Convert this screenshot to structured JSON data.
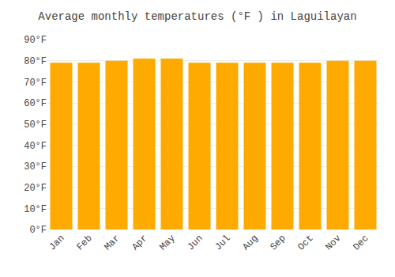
{
  "chart_data": {
    "type": "bar",
    "title": "Average monthly temperatures (°F ) in Laguilayan",
    "categories": [
      "Jan",
      "Feb",
      "Mar",
      "Apr",
      "May",
      "Jun",
      "Jul",
      "Aug",
      "Sep",
      "Oct",
      "Nov",
      "Dec"
    ],
    "values": [
      79,
      79,
      80,
      81,
      81,
      79,
      79,
      79,
      79,
      79,
      80,
      80
    ],
    "color": "#FFAA00",
    "ylim": [
      0,
      90
    ],
    "yticks": [
      {
        "value": 0,
        "label": "0°F"
      },
      {
        "value": 10,
        "label": "10°F"
      },
      {
        "value": 20,
        "label": "20°F"
      },
      {
        "value": 30,
        "label": "30°F"
      },
      {
        "value": 40,
        "label": "40°F"
      },
      {
        "value": 50,
        "label": "50°F"
      },
      {
        "value": 60,
        "label": "60°F"
      },
      {
        "value": 70,
        "label": "70°F"
      },
      {
        "value": 80,
        "label": "80°F"
      },
      {
        "value": 90,
        "label": "90°F"
      }
    ],
    "grid": true
  }
}
